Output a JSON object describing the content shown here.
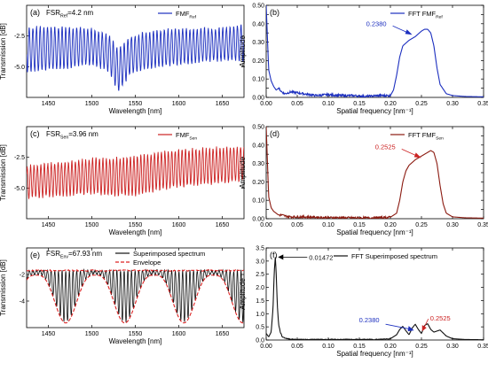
{
  "chart_data": [
    {
      "id": "a",
      "type": "line",
      "panel_label": "(a)",
      "annotation": {
        "main": "FSR",
        "sub": "Ref",
        "rest": "=4.2 nm"
      },
      "legend": {
        "main": "FMF",
        "sub": "Ref"
      },
      "xlabel": "Wavelength [nm]",
      "ylabel": "Transmission [dB]",
      "xlim": [
        1425,
        1675
      ],
      "ylim": [
        -7.5,
        0
      ],
      "xticks": [
        1450,
        1500,
        1550,
        1600,
        1650
      ],
      "yticks": [
        -2.5,
        -5.0
      ],
      "color": "#1c2fbf",
      "series": [
        {
          "x": [
            1425,
            1450,
            1475,
            1500,
            1520,
            1530,
            1545,
            1560,
            1580,
            1600,
            1620,
            1640,
            1660,
            1675
          ],
          "upper": [
            -1.8,
            -1.7,
            -1.8,
            -1.9,
            -2.4,
            -3.6,
            -2.5,
            -2.2,
            -2.0,
            -1.9,
            -1.9,
            -1.9,
            -1.8,
            -1.6
          ],
          "lower": [
            -5.4,
            -5.3,
            -5.1,
            -4.8,
            -5.4,
            -7.0,
            -5.6,
            -5.2,
            -5.0,
            -4.8,
            -4.7,
            -4.5,
            -4.5,
            -4.5
          ],
          "period_nm": 4.2
        }
      ]
    },
    {
      "id": "b",
      "type": "line",
      "panel_label": "(b)",
      "legend": {
        "main": "FFT FMF",
        "sub": "Ref"
      },
      "xlabel": "Spatial frequency [nm⁻¹]",
      "ylabel": "Amplitude",
      "xlim": [
        0,
        0.35
      ],
      "ylim": [
        0,
        0.5
      ],
      "xticks": [
        0.0,
        0.05,
        0.1,
        0.15,
        0.2,
        0.25,
        0.3,
        0.35
      ],
      "yticks": [
        0.0,
        0.05,
        0.1,
        0.15,
        0.2,
        0.25,
        0.3,
        0.35,
        0.4,
        0.45,
        0.5
      ],
      "ytick_labels": [
        "0.00",
        "",
        "0.10",
        "",
        "0.20",
        "",
        "0.30",
        "",
        "0.40",
        "",
        "0.50"
      ],
      "color": "#1c2fbf",
      "annotations": [
        {
          "text": "0.2380",
          "x": 0.238,
          "y": 0.34,
          "color": "#1c2fbf"
        }
      ],
      "series": [
        {
          "x": [
            0.0,
            0.004,
            0.008,
            0.012,
            0.016,
            0.02,
            0.025,
            0.03,
            0.04,
            0.06,
            0.08,
            0.1,
            0.12,
            0.14,
            0.16,
            0.18,
            0.2,
            0.205,
            0.21,
            0.215,
            0.22,
            0.23,
            0.24,
            0.25,
            0.255,
            0.26,
            0.265,
            0.27,
            0.275,
            0.28,
            0.29,
            0.3,
            0.32,
            0.35
          ],
          "y": [
            0.5,
            0.15,
            0.09,
            0.06,
            0.04,
            0.05,
            0.03,
            0.02,
            0.03,
            0.02,
            0.01,
            0.015,
            0.01,
            0.01,
            0.005,
            0.01,
            0.01,
            0.04,
            0.12,
            0.22,
            0.28,
            0.31,
            0.33,
            0.36,
            0.37,
            0.37,
            0.35,
            0.28,
            0.16,
            0.07,
            0.02,
            0.01,
            0.005,
            0.003
          ]
        }
      ]
    },
    {
      "id": "c",
      "type": "line",
      "panel_label": "(c)",
      "annotation": {
        "main": "FSR",
        "sub": "Sen",
        "rest": "=3.96 nm"
      },
      "legend": {
        "main": "FMF",
        "sub": "Sen"
      },
      "xlabel": "Wavelength [nm]",
      "ylabel": "Transmission [dB]",
      "xlim": [
        1425,
        1675
      ],
      "ylim": [
        -7.5,
        0
      ],
      "xticks": [
        1450,
        1500,
        1550,
        1600,
        1650
      ],
      "yticks": [
        -2.5,
        -5.0
      ],
      "color": "#cc2222",
      "series": [
        {
          "x": [
            1425,
            1450,
            1475,
            1500,
            1525,
            1550,
            1575,
            1600,
            1625,
            1650,
            1675
          ],
          "upper": [
            -3.2,
            -3.0,
            -2.8,
            -2.6,
            -2.6,
            -2.4,
            -2.1,
            -1.9,
            -1.8,
            -1.7,
            -1.6
          ],
          "lower": [
            -5.8,
            -5.7,
            -5.6,
            -5.4,
            -5.6,
            -5.6,
            -5.2,
            -4.9,
            -4.7,
            -4.6,
            -4.4
          ],
          "period_nm": 3.96
        }
      ]
    },
    {
      "id": "d",
      "type": "line",
      "panel_label": "(d)",
      "legend": {
        "main": "FFT FMF",
        "sub": "Sen"
      },
      "xlabel": "Spatial frequency [nm⁻¹]",
      "ylabel": "Amplitude",
      "xlim": [
        0,
        0.35
      ],
      "ylim": [
        0,
        0.5
      ],
      "xticks": [
        0.0,
        0.05,
        0.1,
        0.15,
        0.2,
        0.25,
        0.3,
        0.35
      ],
      "yticks": [
        0.0,
        0.05,
        0.1,
        0.15,
        0.2,
        0.25,
        0.3,
        0.35,
        0.4,
        0.45,
        0.5
      ],
      "ytick_labels": [
        "0.00",
        "",
        "0.10",
        "",
        "0.20",
        "",
        "0.30",
        "",
        "0.40",
        "",
        "0.50"
      ],
      "color": "#8b1a10",
      "annotations": [
        {
          "text": "0.2525",
          "x": 0.2525,
          "y": 0.33,
          "color": "#cc2222"
        }
      ],
      "series": [
        {
          "x": [
            0.0,
            0.004,
            0.008,
            0.012,
            0.016,
            0.02,
            0.025,
            0.03,
            0.04,
            0.06,
            0.08,
            0.1,
            0.12,
            0.14,
            0.16,
            0.18,
            0.2,
            0.21,
            0.215,
            0.22,
            0.225,
            0.23,
            0.24,
            0.25,
            0.26,
            0.265,
            0.27,
            0.275,
            0.28,
            0.285,
            0.29,
            0.3,
            0.32,
            0.35
          ],
          "y": [
            0.5,
            0.12,
            0.06,
            0.04,
            0.03,
            0.02,
            0.02,
            0.015,
            0.01,
            0.01,
            0.008,
            0.006,
            0.005,
            0.005,
            0.004,
            0.005,
            0.008,
            0.03,
            0.1,
            0.2,
            0.26,
            0.29,
            0.32,
            0.34,
            0.36,
            0.37,
            0.36,
            0.3,
            0.18,
            0.08,
            0.03,
            0.01,
            0.005,
            0.003
          ]
        }
      ]
    },
    {
      "id": "e",
      "type": "line",
      "panel_label": "(e)",
      "annotation": {
        "main": "FSR",
        "sub": "Env",
        "rest": "=67.93 nm"
      },
      "legend_entries": [
        "Superimposed spectrum",
        "Envelope"
      ],
      "xlabel": "Wavelength [nm]",
      "ylabel": "Transmission [dB]",
      "xlim": [
        1425,
        1675
      ],
      "ylim": [
        -6,
        0
      ],
      "xticks": [
        1450,
        1500,
        1550,
        1600,
        1650
      ],
      "yticks": [
        -2,
        -4
      ],
      "color": "#111111",
      "envelope_color": "#dd2222",
      "series": [
        {
          "name": "Superimposed spectrum",
          "envelope_upper": -1.7,
          "envelope_lower_min": -5.6,
          "envelope_lower_max": -2.0,
          "period_envelope_nm": 67.93,
          "period_fast_nm": 4.2,
          "envelope_minimum_nm": 1470
        }
      ]
    },
    {
      "id": "f",
      "type": "line",
      "panel_label": "(f)",
      "legend": {
        "main": "FFT Superimposed spectrum",
        "sub": ""
      },
      "xlabel": "Spatial frequency [nm⁻¹]",
      "ylabel": "Amplitude",
      "xlim": [
        0,
        0.35
      ],
      "ylim": [
        0,
        3.5
      ],
      "xticks": [
        0.0,
        0.05,
        0.1,
        0.15,
        0.2,
        0.25,
        0.3,
        0.35
      ],
      "yticks": [
        0.0,
        0.5,
        1.0,
        1.5,
        2.0,
        2.5,
        3.0,
        3.5
      ],
      "ytick_labels": [
        "0.0",
        "0.5",
        "1.0",
        "1.5",
        "2.0",
        "2.5",
        "3.0",
        "3.5"
      ],
      "color": "#111111",
      "annotations": [
        {
          "text": "0.01472",
          "x": 0.01472,
          "y": 3.15,
          "color": "#111111"
        },
        {
          "text": "0.2380",
          "x": 0.238,
          "y": 0.6,
          "color": "#1c2fbf"
        },
        {
          "text": "0.2525",
          "x": 0.2525,
          "y": 0.6,
          "color": "#cc2222"
        }
      ],
      "series": [
        {
          "x": [
            0.0,
            0.004,
            0.008,
            0.011,
            0.013,
            0.0147,
            0.016,
            0.018,
            0.02,
            0.023,
            0.026,
            0.03,
            0.034,
            0.04,
            0.05,
            0.06,
            0.08,
            0.1,
            0.12,
            0.14,
            0.16,
            0.18,
            0.2,
            0.21,
            0.215,
            0.22,
            0.225,
            0.23,
            0.235,
            0.24,
            0.245,
            0.25,
            0.255,
            0.26,
            0.265,
            0.27,
            0.28,
            0.29,
            0.3,
            0.32,
            0.35
          ],
          "y": [
            0.25,
            0.12,
            0.3,
            1.2,
            2.6,
            3.15,
            2.6,
            1.3,
            0.6,
            0.28,
            0.12,
            0.08,
            0.05,
            0.03,
            0.02,
            0.02,
            0.02,
            0.02,
            0.02,
            0.02,
            0.02,
            0.02,
            0.05,
            0.2,
            0.4,
            0.52,
            0.35,
            0.2,
            0.45,
            0.6,
            0.4,
            0.25,
            0.55,
            0.62,
            0.4,
            0.3,
            0.38,
            0.15,
            0.05,
            0.02,
            0.01
          ]
        }
      ]
    }
  ]
}
